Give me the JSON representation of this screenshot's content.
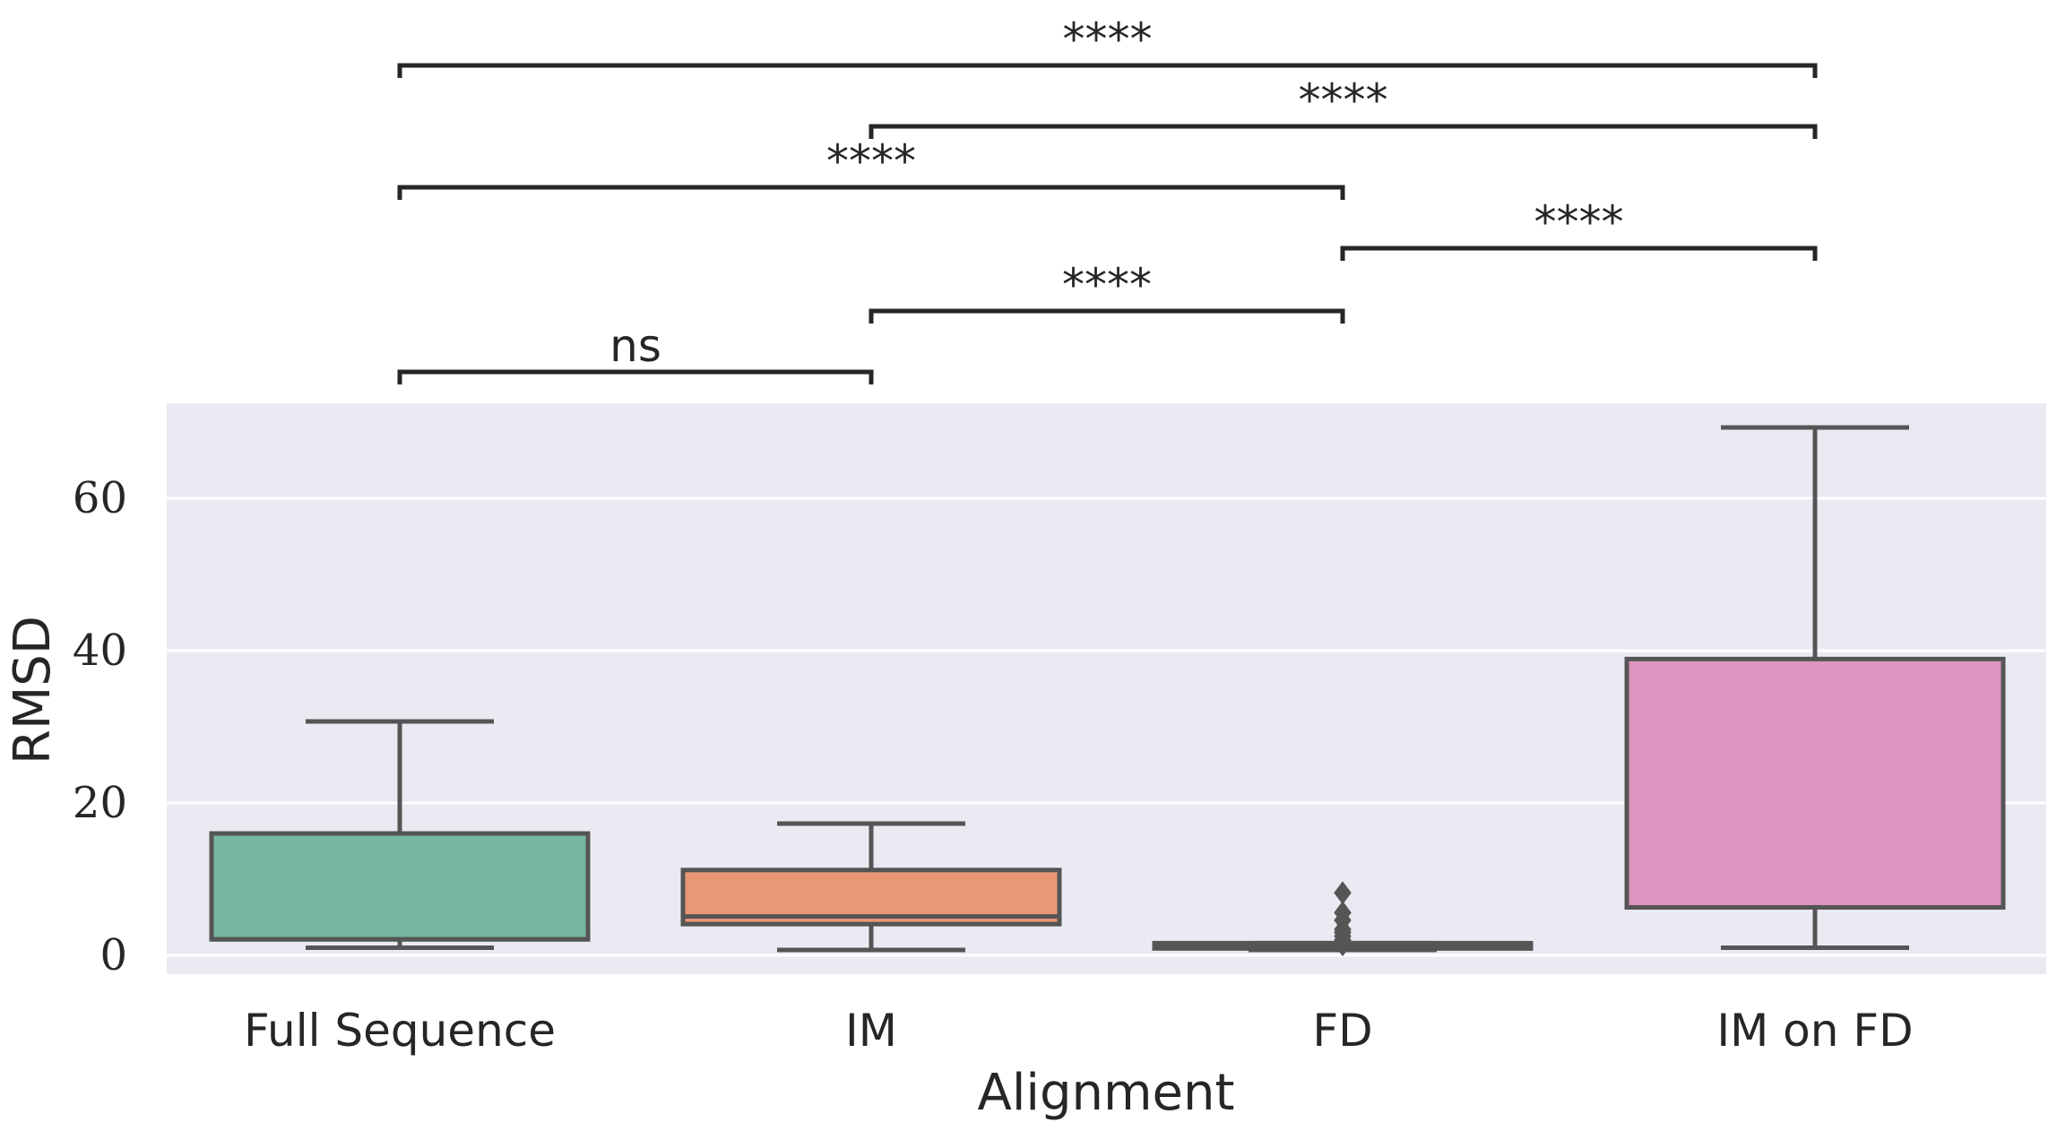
{
  "chart_data": {
    "type": "box",
    "xlabel": "Alignment",
    "ylabel": "RMSD",
    "ylim": [
      -2,
      72
    ],
    "yticks": [
      0,
      20,
      40,
      60
    ],
    "grid": true,
    "categories": [
      "Full Sequence",
      "IM",
      "FD",
      "IM on FD"
    ],
    "boxes": [
      {
        "category": "Full Sequence",
        "whisker_low": 1.0,
        "q1": 2.1,
        "median": 2.1,
        "q3": 16.0,
        "whisker_high": 30.7,
        "outliers": [],
        "color": "#76b7a2"
      },
      {
        "category": "IM",
        "whisker_low": 0.7,
        "q1": 4.1,
        "median": 5.1,
        "q3": 11.2,
        "whisker_high": 17.3,
        "outliers": [],
        "color": "#e99875"
      },
      {
        "category": "FD",
        "whisker_low": 0.7,
        "q1": 0.9,
        "median": 1.2,
        "q3": 1.6,
        "whisker_high": 1.6,
        "outliers": [
          1.4,
          2.0,
          2.5,
          3.0,
          3.4,
          4.6,
          5.6,
          8.2
        ],
        "color": "#8fa2cb"
      },
      {
        "category": "IM on FD",
        "whisker_low": 1.0,
        "q1": 6.3,
        "median": 6.3,
        "q3": 38.9,
        "whisker_high": 69.3,
        "outliers": [],
        "color": "#dd95bf"
      }
    ],
    "significance": [
      {
        "pair": [
          "Full Sequence",
          "IM"
        ],
        "label": "ns"
      },
      {
        "pair": [
          "IM",
          "FD"
        ],
        "label": "****"
      },
      {
        "pair": [
          "FD",
          "IM on FD"
        ],
        "label": "****"
      },
      {
        "pair": [
          "Full Sequence",
          "FD"
        ],
        "label": "****"
      },
      {
        "pair": [
          "IM",
          "IM on FD"
        ],
        "label": "****"
      },
      {
        "pair": [
          "Full Sequence",
          "IM on FD"
        ],
        "label": "****"
      }
    ],
    "colors": {
      "plot_background": "#eaeaf2",
      "grid": "#ffffff",
      "box_edge": "#555555",
      "bracket": "#262626"
    }
  }
}
